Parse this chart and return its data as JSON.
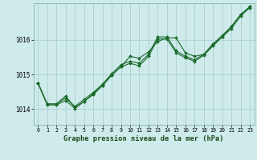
{
  "xlabel": "Graphe pression niveau de la mer (hPa)",
  "background_color": "#ceeaea",
  "grid_color": "#aacfcf",
  "line_color": "#1a6b2a",
  "yticks": [
    1014,
    1015,
    1016
  ],
  "ylim": [
    1013.55,
    1017.05
  ],
  "xlim": [
    -0.5,
    23.5
  ],
  "xticks": [
    0,
    1,
    2,
    3,
    4,
    5,
    6,
    7,
    8,
    9,
    10,
    11,
    12,
    13,
    14,
    15,
    16,
    17,
    18,
    19,
    20,
    21,
    22,
    23
  ],
  "series1_x": [
    0,
    1,
    2,
    3,
    4,
    5,
    6,
    7,
    8,
    9,
    10,
    11,
    12,
    13,
    14,
    15,
    16,
    17,
    18,
    19,
    20,
    21,
    22,
    23
  ],
  "series1_y": [
    1014.75,
    1014.15,
    1014.15,
    1014.38,
    1014.05,
    1014.22,
    1014.42,
    1014.68,
    1014.98,
    1015.22,
    1015.52,
    1015.47,
    1015.65,
    1015.95,
    1016.05,
    1016.05,
    1015.62,
    1015.52,
    1015.58,
    1015.85,
    1016.08,
    1016.38,
    1016.72,
    1016.95
  ],
  "series2_x": [
    0,
    1,
    2,
    3,
    4,
    5,
    6,
    7,
    8,
    9,
    10,
    11,
    12,
    13,
    14,
    15,
    16,
    17,
    18,
    19,
    20,
    21,
    22,
    23
  ],
  "series2_y": [
    1014.75,
    1014.15,
    1014.15,
    1014.32,
    1014.08,
    1014.28,
    1014.48,
    1014.72,
    1015.02,
    1015.28,
    1015.38,
    1015.32,
    1015.58,
    1016.08,
    1016.08,
    1015.68,
    1015.52,
    1015.42,
    1015.58,
    1015.88,
    1016.12,
    1016.38,
    1016.72,
    1016.95
  ],
  "series3_x": [
    0,
    1,
    2,
    3,
    4,
    5,
    6,
    7,
    8,
    9,
    10,
    11,
    12,
    13,
    14,
    15,
    16,
    17,
    18,
    19,
    20,
    21,
    22,
    23
  ],
  "series3_y": [
    1014.75,
    1014.12,
    1014.12,
    1014.25,
    1014.02,
    1014.22,
    1014.45,
    1014.68,
    1014.98,
    1015.22,
    1015.32,
    1015.25,
    1015.52,
    1016.02,
    1016.02,
    1015.62,
    1015.48,
    1015.38,
    1015.55,
    1015.82,
    1016.08,
    1016.32,
    1016.68,
    1016.92
  ]
}
